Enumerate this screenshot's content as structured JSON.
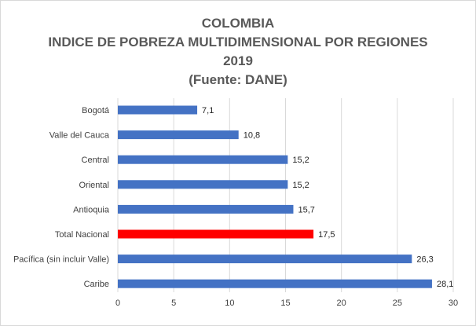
{
  "chart_data": {
    "type": "bar",
    "orientation": "horizontal",
    "title_lines": [
      "COLOMBIA",
      "INDICE DE POBREZA MULTIDIMENSIONAL POR REGIONES",
      "2019",
      "(Fuente: DANE)"
    ],
    "categories": [
      "Bogotá",
      "Valle del Cauca",
      "Central",
      "Oriental",
      "Antioquia",
      "Total Nacional",
      "Pacífica (sin incluir Valle)",
      "Caribe"
    ],
    "values": [
      7.1,
      10.8,
      15.2,
      15.2,
      15.7,
      17.5,
      26.3,
      28.1
    ],
    "value_labels": [
      "7,1",
      "10,8",
      "15,2",
      "15,2",
      "15,7",
      "17,5",
      "26,3",
      "28,1"
    ],
    "highlight_index": 5,
    "xlim": [
      0,
      30
    ],
    "xticks": [
      0,
      5,
      10,
      15,
      20,
      25,
      30
    ],
    "xtick_labels": [
      "0",
      "5",
      "10",
      "15",
      "20",
      "25",
      "30"
    ],
    "grid": true,
    "legend": "none",
    "xlabel": "",
    "ylabel": "",
    "colors": {
      "bar": "#4472c4",
      "highlight": "#ff0000",
      "grid": "#d9d9d9",
      "title": "#595959",
      "text": "#404040"
    }
  }
}
